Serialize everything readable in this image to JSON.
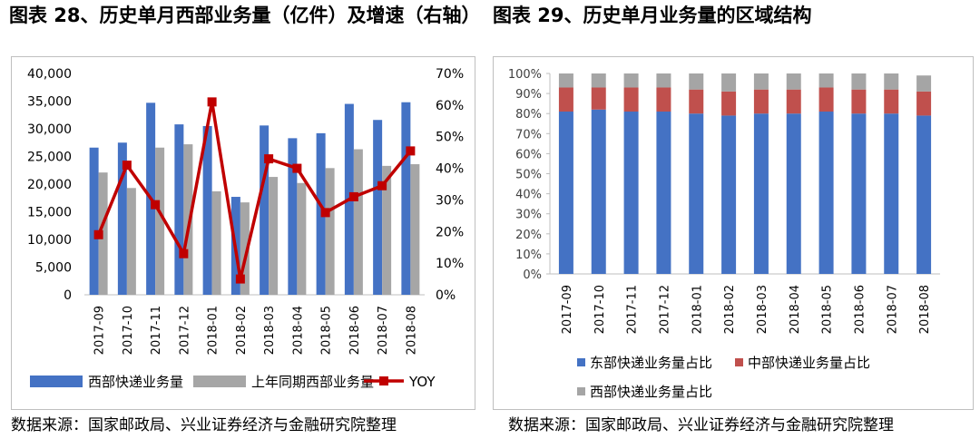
{
  "left": {
    "title": "图表 28、历史单月西部业务量（亿件）及增速（右轴）",
    "source": "数据来源：国家邮政局、兴业证券经济与金融研究院整理"
  },
  "right": {
    "title": "图表 29、历史单月业务量的区域结构",
    "source": "数据来源：国家邮政局、兴业证券经济与金融研究院整理"
  },
  "colors": {
    "blue": "#4472c4",
    "gray": "#a6a6a6",
    "red": "#c00000",
    "rose": "#c0504d",
    "lightgray": "#a5a5a5",
    "axis": "#bfbfbf"
  },
  "chart_data": [
    {
      "type": "bar",
      "categories": [
        "2017-09",
        "2017-10",
        "2017-11",
        "2017-12",
        "2018-01",
        "2018-02",
        "2018-03",
        "2018-04",
        "2018-05",
        "2018-06",
        "2018-07",
        "2018-08"
      ],
      "ylim": [
        0,
        40000
      ],
      "y2lim": [
        0,
        0.7
      ],
      "yticks": [
        "0",
        "5,000",
        "10,000",
        "15,000",
        "20,000",
        "25,000",
        "30,000",
        "35,000",
        "40,000"
      ],
      "y2ticks": [
        "0%",
        "10%",
        "20%",
        "30%",
        "40%",
        "50%",
        "60%",
        "70%"
      ],
      "series": [
        {
          "name": "西部快递业务量",
          "type": "bar",
          "color": "#4472c4",
          "values": [
            26600,
            27500,
            34700,
            30800,
            30500,
            17700,
            30600,
            28300,
            29200,
            34500,
            31600,
            34800
          ]
        },
        {
          "name": "上年同期西部业务量",
          "type": "bar",
          "color": "#a6a6a6",
          "values": [
            22100,
            19300,
            26600,
            27200,
            18700,
            16700,
            21300,
            20200,
            22900,
            26300,
            23300,
            23600
          ]
        },
        {
          "name": "YOY",
          "type": "line",
          "axis": "right",
          "color": "#c00000",
          "values": [
            0.19,
            0.41,
            0.285,
            0.13,
            0.61,
            0.05,
            0.43,
            0.4,
            0.26,
            0.31,
            0.345,
            0.455
          ]
        }
      ]
    },
    {
      "type": "bar",
      "stacked": true,
      "categories": [
        "2017-09",
        "2017-10",
        "2017-11",
        "2017-12",
        "2018-01",
        "2018-02",
        "2018-03",
        "2018-04",
        "2018-05",
        "2018-06",
        "2018-07",
        "2018-08"
      ],
      "ylim": [
        0,
        1
      ],
      "yticks": [
        "0%",
        "10%",
        "20%",
        "30%",
        "40%",
        "50%",
        "60%",
        "70%",
        "80%",
        "90%",
        "100%"
      ],
      "series": [
        {
          "name": "东部快递业务量占比",
          "color": "#4472c4",
          "values": [
            0.81,
            0.82,
            0.81,
            0.81,
            0.8,
            0.79,
            0.8,
            0.8,
            0.81,
            0.8,
            0.8,
            0.79
          ]
        },
        {
          "name": "中部快递业务量占比",
          "color": "#c0504d",
          "values": [
            0.12,
            0.11,
            0.12,
            0.12,
            0.12,
            0.12,
            0.12,
            0.12,
            0.12,
            0.12,
            0.12,
            0.12
          ]
        },
        {
          "name": "西部快递业务量占比",
          "color": "#a5a5a5",
          "values": [
            0.07,
            0.07,
            0.07,
            0.07,
            0.08,
            0.09,
            0.08,
            0.08,
            0.07,
            0.08,
            0.08,
            0.08
          ]
        }
      ]
    }
  ]
}
